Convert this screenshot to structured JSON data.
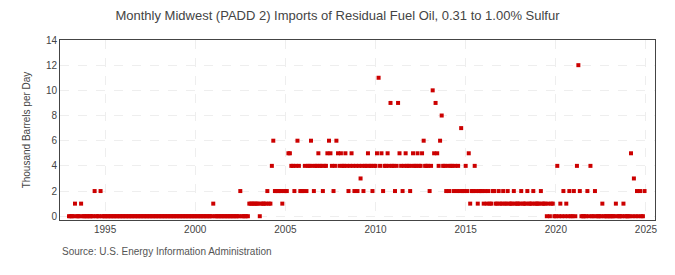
{
  "chart_data": {
    "type": "scatter",
    "title": "Monthly Midwest (PADD 2) Imports of Residual Fuel Oil, 0.31 to 1.00% Sulfur",
    "ylabel": "Thousand Barrels per Day",
    "annotations": [
      "Source: U.S. Energy Information Administration"
    ],
    "color": "#cc0000",
    "marker": "square",
    "grid": true,
    "xlim": [
      1992.5,
      2025.5
    ],
    "ylim": [
      -0.3,
      14
    ],
    "xticks": [
      1995,
      2000,
      2005,
      2010,
      2015,
      2020,
      2025
    ],
    "yticks": [
      0,
      2,
      4,
      6,
      8,
      10,
      12,
      14
    ],
    "x": [
      1993.0,
      1993.08,
      1993.17,
      1993.25,
      1993.33,
      1993.42,
      1993.5,
      1993.58,
      1993.67,
      1993.75,
      1993.83,
      1993.92,
      1994.0,
      1994.08,
      1994.17,
      1994.25,
      1994.33,
      1994.42,
      1994.5,
      1994.58,
      1994.67,
      1994.75,
      1994.83,
      1994.92,
      1995.0,
      1995.08,
      1995.17,
      1995.25,
      1995.33,
      1995.42,
      1995.5,
      1995.58,
      1995.67,
      1995.75,
      1995.83,
      1995.92,
      1996.0,
      1996.08,
      1996.17,
      1996.25,
      1996.33,
      1996.42,
      1996.5,
      1996.58,
      1996.67,
      1996.75,
      1996.83,
      1996.92,
      1997.0,
      1997.08,
      1997.17,
      1997.25,
      1997.33,
      1997.42,
      1997.5,
      1997.58,
      1997.67,
      1997.75,
      1997.83,
      1997.92,
      1998.0,
      1998.08,
      1998.17,
      1998.25,
      1998.33,
      1998.42,
      1998.5,
      1998.58,
      1998.67,
      1998.75,
      1998.83,
      1998.92,
      1999.0,
      1999.08,
      1999.17,
      1999.25,
      1999.33,
      1999.42,
      1999.5,
      1999.58,
      1999.67,
      1999.75,
      1999.83,
      1999.92,
      2000.0,
      2000.08,
      2000.17,
      2000.25,
      2000.33,
      2000.42,
      2000.5,
      2000.58,
      2000.67,
      2000.75,
      2000.83,
      2000.92,
      2001.0,
      2001.08,
      2001.17,
      2001.25,
      2001.33,
      2001.42,
      2001.5,
      2001.58,
      2001.67,
      2001.75,
      2001.83,
      2001.92,
      2002.0,
      2002.08,
      2002.17,
      2002.25,
      2002.33,
      2002.42,
      2002.5,
      2002.58,
      2002.67,
      2002.75,
      2002.83,
      2002.92,
      2003.0,
      2003.08,
      2003.17,
      2003.25,
      2003.33,
      2003.42,
      2003.5,
      2003.58,
      2003.67,
      2003.75,
      2003.83,
      2003.92,
      2004.0,
      2004.08,
      2004.17,
      2004.25,
      2004.33,
      2004.42,
      2004.5,
      2004.58,
      2004.67,
      2004.75,
      2004.83,
      2004.92,
      2005.0,
      2005.08,
      2005.17,
      2005.25,
      2005.33,
      2005.42,
      2005.5,
      2005.58,
      2005.67,
      2005.75,
      2005.83,
      2005.92,
      2006.0,
      2006.08,
      2006.17,
      2006.25,
      2006.33,
      2006.42,
      2006.5,
      2006.58,
      2006.67,
      2006.75,
      2006.83,
      2006.92,
      2007.0,
      2007.08,
      2007.17,
      2007.25,
      2007.33,
      2007.42,
      2007.5,
      2007.58,
      2007.67,
      2007.75,
      2007.83,
      2007.92,
      2008.0,
      2008.08,
      2008.17,
      2008.25,
      2008.33,
      2008.42,
      2008.5,
      2008.58,
      2008.67,
      2008.75,
      2008.83,
      2008.92,
      2009.0,
      2009.08,
      2009.17,
      2009.25,
      2009.33,
      2009.42,
      2009.5,
      2009.58,
      2009.67,
      2009.75,
      2009.83,
      2009.92,
      2010.0,
      2010.08,
      2010.17,
      2010.25,
      2010.33,
      2010.42,
      2010.5,
      2010.58,
      2010.67,
      2010.75,
      2010.83,
      2010.92,
      2011.0,
      2011.08,
      2011.17,
      2011.25,
      2011.33,
      2011.42,
      2011.5,
      2011.58,
      2011.67,
      2011.75,
      2011.83,
      2011.92,
      2012.0,
      2012.08,
      2012.17,
      2012.25,
      2012.33,
      2012.42,
      2012.5,
      2012.58,
      2012.67,
      2012.75,
      2012.83,
      2012.92,
      2013.0,
      2013.08,
      2013.17,
      2013.25,
      2013.33,
      2013.42,
      2013.5,
      2013.58,
      2013.67,
      2013.75,
      2013.83,
      2013.92,
      2014.0,
      2014.08,
      2014.17,
      2014.25,
      2014.33,
      2014.42,
      2014.5,
      2014.58,
      2014.67,
      2014.75,
      2014.83,
      2014.92,
      2015.0,
      2015.08,
      2015.17,
      2015.25,
      2015.33,
      2015.42,
      2015.5,
      2015.58,
      2015.67,
      2015.75,
      2015.83,
      2015.92,
      2016.0,
      2016.08,
      2016.17,
      2016.25,
      2016.33,
      2016.42,
      2016.5,
      2016.58,
      2016.67,
      2016.75,
      2016.83,
      2016.92,
      2017.0,
      2017.08,
      2017.17,
      2017.25,
      2017.33,
      2017.42,
      2017.5,
      2017.58,
      2017.67,
      2017.75,
      2017.83,
      2017.92,
      2018.0,
      2018.08,
      2018.17,
      2018.25,
      2018.33,
      2018.42,
      2018.5,
      2018.58,
      2018.67,
      2018.75,
      2018.83,
      2018.92,
      2019.0,
      2019.08,
      2019.17,
      2019.25,
      2019.33,
      2019.42,
      2019.5,
      2019.58,
      2019.67,
      2019.75,
      2019.83,
      2019.92,
      2020.0,
      2020.08,
      2020.17,
      2020.25,
      2020.33,
      2020.42,
      2020.5,
      2020.58,
      2020.67,
      2020.75,
      2020.83,
      2020.92,
      2021.0,
      2021.08,
      2021.17,
      2021.25,
      2021.33,
      2021.42,
      2021.5,
      2021.58,
      2021.67,
      2021.75,
      2021.83,
      2021.92,
      2022.0,
      2022.08,
      2022.17,
      2022.25,
      2022.33,
      2022.42,
      2022.5,
      2022.58,
      2022.67,
      2022.75,
      2022.83,
      2022.92,
      2023.0,
      2023.08,
      2023.17,
      2023.25,
      2023.33,
      2023.42,
      2023.5,
      2023.58,
      2023.67,
      2023.75,
      2023.83,
      2023.92,
      2024.0,
      2024.08,
      2024.17,
      2024.25,
      2024.33,
      2024.42,
      2024.5,
      2024.58,
      2024.67,
      2024.75,
      2024.83,
      2024.92
    ],
    "values": [
      0,
      0,
      0,
      0,
      1,
      0,
      0,
      0,
      1,
      0,
      0,
      0,
      0,
      0,
      0,
      0,
      0,
      2,
      0,
      0,
      0,
      2,
      0,
      0,
      0,
      0,
      0,
      0,
      0,
      0,
      0,
      0,
      0,
      0,
      0,
      0,
      0,
      0,
      0,
      0,
      0,
      0,
      0,
      0,
      0,
      0,
      0,
      0,
      0,
      0,
      0,
      0,
      0,
      0,
      0,
      0,
      0,
      0,
      0,
      0,
      0,
      0,
      0,
      0,
      0,
      0,
      0,
      0,
      0,
      0,
      0,
      0,
      0,
      0,
      0,
      0,
      0,
      0,
      0,
      0,
      0,
      0,
      0,
      0,
      0,
      0,
      0,
      0,
      0,
      0,
      0,
      0,
      0,
      0,
      0,
      0,
      1,
      0,
      0,
      0,
      0,
      0,
      0,
      0,
      0,
      0,
      0,
      0,
      0,
      0,
      0,
      0,
      0,
      0,
      2,
      0,
      0,
      0,
      0,
      0,
      1,
      1,
      1,
      1,
      1,
      1,
      1,
      0,
      1,
      1,
      1,
      1,
      2,
      1,
      1,
      4,
      6,
      2,
      2,
      2,
      2,
      2,
      1,
      2,
      2,
      2,
      5,
      5,
      4,
      4,
      2,
      4,
      6,
      4,
      2,
      2,
      2,
      4,
      2,
      4,
      4,
      6,
      4,
      2,
      4,
      4,
      5,
      4,
      4,
      2,
      4,
      4,
      5,
      6,
      5,
      4,
      2,
      4,
      6,
      5,
      4,
      5,
      4,
      4,
      5,
      4,
      2,
      4,
      5,
      4,
      2,
      4,
      2,
      4,
      3,
      4,
      2,
      4,
      4,
      5,
      4,
      4,
      2,
      4,
      4,
      5,
      11,
      4,
      5,
      2,
      4,
      4,
      5,
      4,
      9,
      4,
      4,
      2,
      4,
      9,
      5,
      4,
      2,
      4,
      5,
      4,
      4,
      2,
      4,
      5,
      4,
      4,
      5,
      4,
      4,
      5,
      6,
      4,
      4,
      4,
      2,
      4,
      10,
      5,
      9,
      5,
      4,
      6,
      8,
      4,
      4,
      2,
      4,
      2,
      4,
      4,
      2,
      4,
      2,
      4,
      2,
      7,
      2,
      2,
      4,
      2,
      5,
      1,
      2,
      2,
      4,
      2,
      1,
      2,
      2,
      2,
      1,
      2,
      1,
      2,
      1,
      1,
      2,
      2,
      1,
      1,
      2,
      1,
      1,
      2,
      1,
      1,
      2,
      1,
      1,
      1,
      2,
      1,
      1,
      1,
      1,
      2,
      1,
      1,
      1,
      2,
      1,
      1,
      1,
      2,
      1,
      1,
      1,
      1,
      2,
      1,
      1,
      1,
      0,
      1,
      0,
      1,
      1,
      0,
      0,
      4,
      0,
      1,
      0,
      2,
      0,
      1,
      0,
      2,
      0,
      0,
      2,
      0,
      4,
      12,
      2,
      0,
      0,
      0,
      0,
      2,
      0,
      4,
      0,
      0,
      2,
      0,
      0,
      0,
      0,
      1,
      0,
      0,
      0,
      0,
      0,
      0,
      0,
      0,
      1,
      0,
      0,
      0,
      0,
      1,
      0,
      0,
      0,
      0,
      5,
      0,
      3,
      0,
      2,
      0,
      2,
      0,
      0,
      2
    ]
  }
}
